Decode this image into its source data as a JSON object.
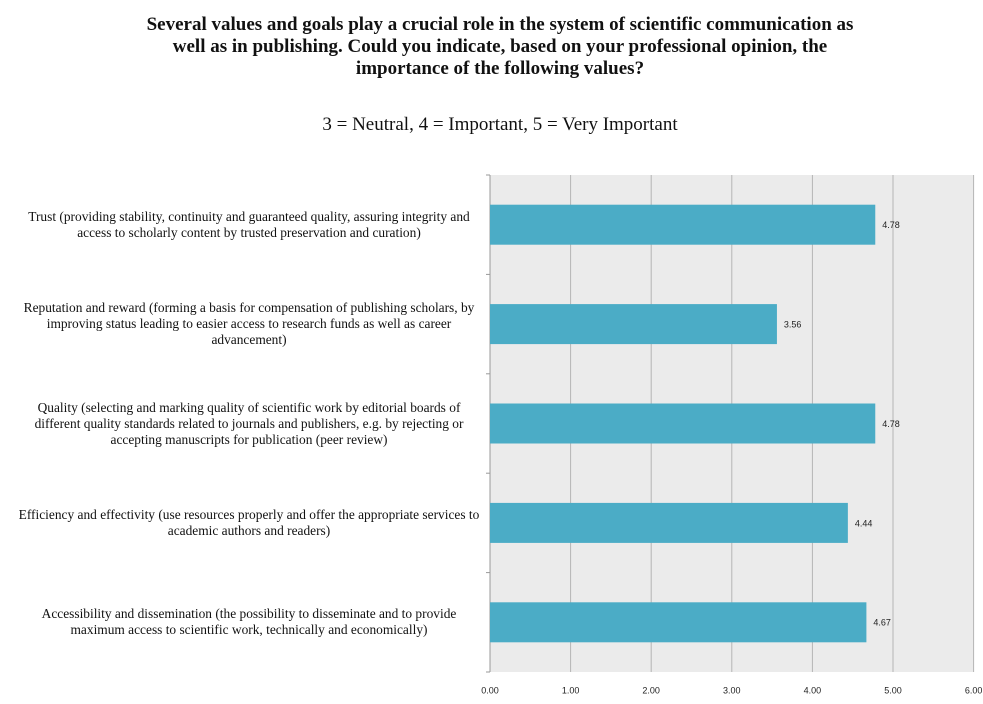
{
  "chart_data": {
    "type": "bar",
    "orientation": "horizontal",
    "title": "Several values and goals play a crucial role in the system of scientific communication as well as in publishing. Could you indicate, based on your professional opinion, the importance of the following values?",
    "subtitle": "3 = Neutral, 4 = Important, 5 = Very Important",
    "categories": [
      "Trust (providing stability, continuity and guaranteed quality, assuring integrity and access to scholarly content by trusted preservation and curation)",
      "Reputation and reward (forming a basis for compensation of publishing scholars, by improving status leading to easier access to research funds as well as career advancement)",
      "Quality (selecting and marking quality of scientific work by editorial boards of different quality standards related to journals and publishers, e.g. by rejecting or accepting manuscripts for publication (peer review)",
      "Efficiency and effectivity (use resources properly and offer the appropriate services to academic authors and readers)",
      "Accessibility and dissemination (the possibility to disseminate and to provide maximum access to scientific work, technically and economically)"
    ],
    "values": [
      4.78,
      3.56,
      4.78,
      4.44,
      4.67
    ],
    "color": "#4bacc6",
    "xlim": [
      0,
      6
    ],
    "xticks": [
      {
        "value": 0,
        "label": "0.00"
      },
      {
        "value": 1,
        "label": "1.00"
      },
      {
        "value": 2,
        "label": "2.00"
      },
      {
        "value": 3,
        "label": "3.00"
      },
      {
        "value": 4,
        "label": "4.00"
      },
      {
        "value": 5,
        "label": "5.00"
      },
      {
        "value": 6,
        "label": "6.00"
      }
    ],
    "grid": true
  }
}
